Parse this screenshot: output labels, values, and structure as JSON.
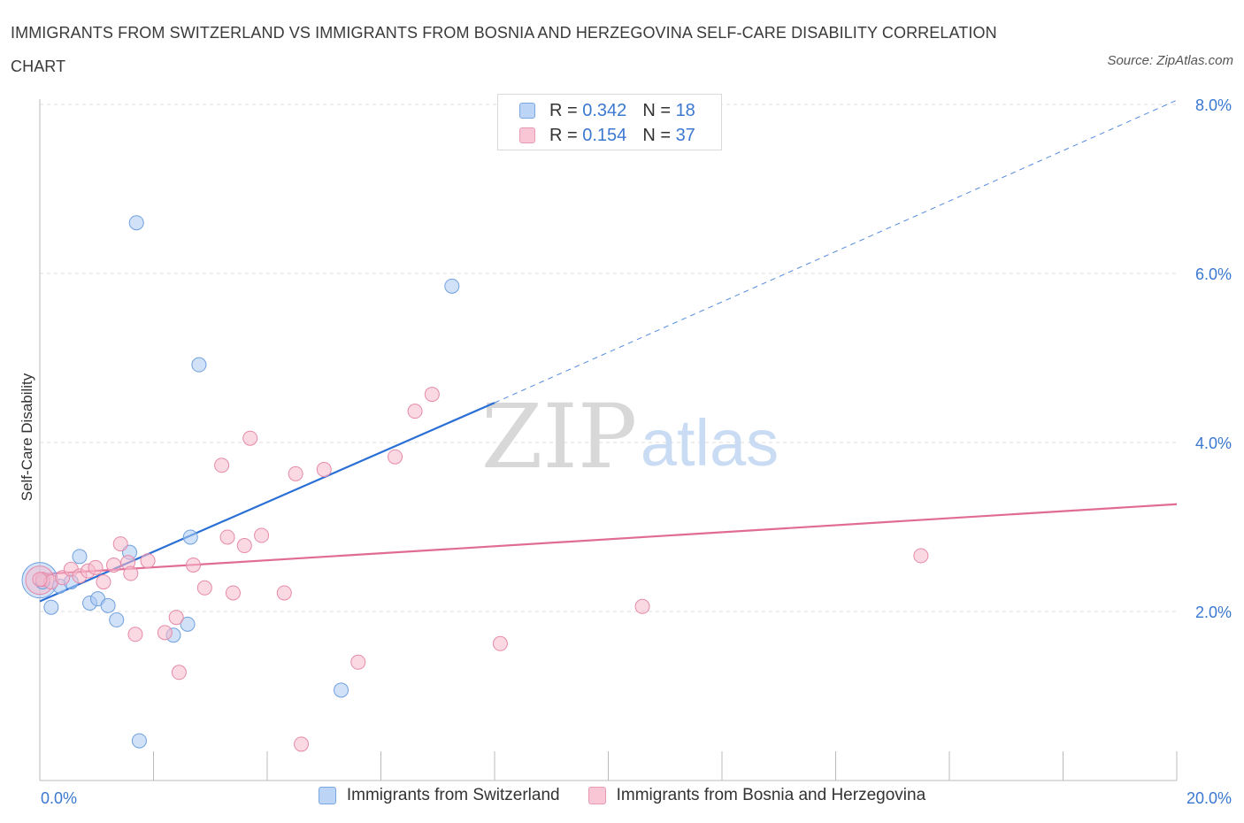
{
  "title": "IMMIGRANTS FROM SWITZERLAND VS IMMIGRANTS FROM BOSNIA AND HERZEGOVINA SELF-CARE DISABILITY CORRELATION CHART",
  "source": "Source: ZipAtlas.com",
  "watermark": {
    "zip": "ZIP",
    "atlas": "atlas"
  },
  "legend": {
    "r_label": "R =",
    "n_label": "N =",
    "rows": [
      {
        "r": "0.342",
        "n": "18"
      },
      {
        "r": "0.154",
        "n": "37"
      }
    ]
  },
  "colors": {
    "blue_fill": "#a9c8f2",
    "blue_stroke": "#6fa0de",
    "blue_line": "#2a6fd6",
    "pink_fill": "#f7b9cc",
    "pink_stroke": "#e58aa8",
    "pink_line": "#e06c96",
    "axis_text": "#3b78d0",
    "grid": "#dddddd"
  },
  "chart_data": {
    "type": "scatter",
    "title": "IMMIGRANTS FROM SWITZERLAND VS IMMIGRANTS FROM BOSNIA AND HERZEGOVINA SELF-CARE DISABILITY CORRELATION CHART",
    "xlabel": "",
    "ylabel": "Self-Care Disability",
    "xlim": [
      0,
      20
    ],
    "ylim": [
      0,
      8
    ],
    "x_tick_labels": [
      "0.0%",
      "20.0%"
    ],
    "y_ticks": [
      2,
      4,
      6,
      8
    ],
    "y_tick_labels": [
      "2.0%",
      "4.0%",
      "6.0%",
      "8.0%"
    ],
    "grid": true,
    "legend_position": "top-center",
    "series": [
      {
        "name": "Immigrants from Switzerland",
        "color": "#6fa0de",
        "points": [
          [
            0.05,
            2.35
          ],
          [
            0.2,
            2.05
          ],
          [
            0.35,
            2.3
          ],
          [
            0.55,
            2.35
          ],
          [
            0.7,
            2.65
          ],
          [
            0.88,
            2.1
          ],
          [
            1.02,
            2.15
          ],
          [
            1.2,
            2.07
          ],
          [
            1.35,
            1.9
          ],
          [
            1.58,
            2.7
          ],
          [
            1.7,
            6.6
          ],
          [
            1.75,
            0.47
          ],
          [
            2.35,
            1.72
          ],
          [
            2.6,
            1.85
          ],
          [
            2.65,
            2.88
          ],
          [
            2.8,
            4.92
          ],
          [
            5.3,
            1.07
          ],
          [
            7.25,
            5.85
          ]
        ],
        "trend": {
          "x0": 0,
          "y0": 2.12,
          "x1": 8.0,
          "y1": 4.47,
          "dashed_to_x": 20,
          "dashed_to_y": 8.05
        }
      },
      {
        "name": "Immigrants from Bosnia and Herzegovina",
        "color": "#e58aa8",
        "points": [
          [
            0.05,
            2.38
          ],
          [
            0.2,
            2.35
          ],
          [
            0.4,
            2.4
          ],
          [
            0.55,
            2.5
          ],
          [
            0.7,
            2.42
          ],
          [
            0.85,
            2.48
          ],
          [
            0.98,
            2.52
          ],
          [
            1.12,
            2.35
          ],
          [
            1.3,
            2.55
          ],
          [
            1.42,
            2.8
          ],
          [
            1.55,
            2.58
          ],
          [
            1.6,
            2.45
          ],
          [
            1.68,
            1.73
          ],
          [
            1.9,
            2.6
          ],
          [
            2.2,
            1.75
          ],
          [
            2.4,
            1.93
          ],
          [
            2.45,
            1.28
          ],
          [
            2.7,
            2.55
          ],
          [
            2.9,
            2.28
          ],
          [
            3.2,
            3.73
          ],
          [
            3.3,
            2.88
          ],
          [
            3.4,
            2.22
          ],
          [
            3.6,
            2.78
          ],
          [
            3.7,
            4.05
          ],
          [
            3.9,
            2.9
          ],
          [
            4.3,
            2.22
          ],
          [
            4.5,
            3.63
          ],
          [
            4.6,
            0.43
          ],
          [
            5.0,
            3.68
          ],
          [
            5.6,
            1.4
          ],
          [
            6.25,
            3.83
          ],
          [
            6.6,
            4.37
          ],
          [
            6.9,
            4.57
          ],
          [
            8.1,
            1.62
          ],
          [
            10.6,
            2.06
          ],
          [
            15.5,
            2.66
          ],
          [
            0.0,
            2.38
          ]
        ],
        "trend": {
          "x0": 0,
          "y0": 2.44,
          "x1": 20,
          "y1": 3.27
        }
      }
    ]
  },
  "bottom_legend": [
    {
      "label": "Immigrants from Switzerland"
    },
    {
      "label": "Immigrants from Bosnia and Herzegovina"
    }
  ]
}
